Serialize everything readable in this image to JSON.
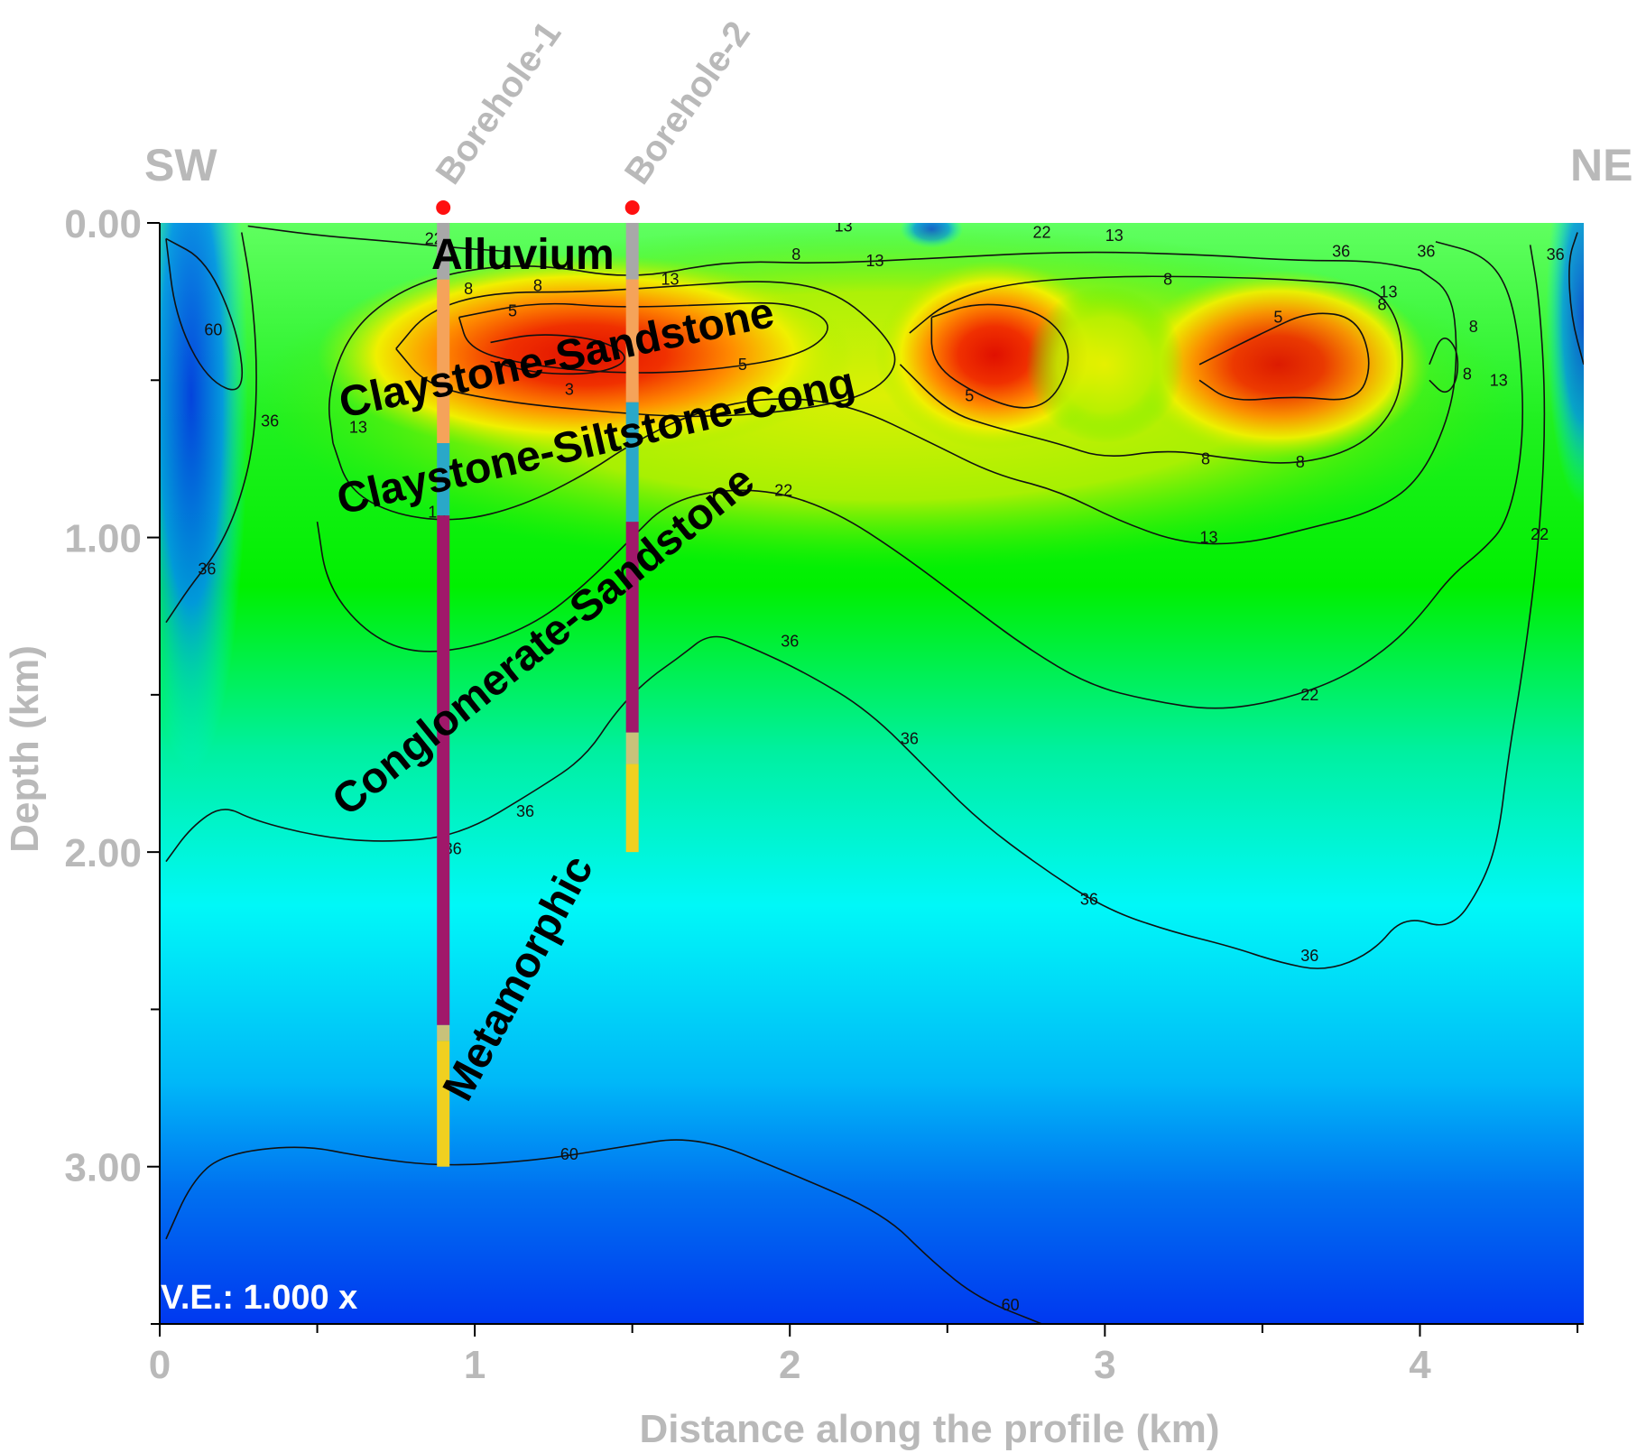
{
  "chart_data": {
    "type": "heatmap",
    "title": "",
    "xlabel": "Distance along the profile (km)",
    "ylabel": "Depth (km)",
    "xlim": [
      0,
      4.52
    ],
    "ylim": [
      0,
      3.5
    ],
    "x_ticks": [
      "0",
      "1",
      "2",
      "3",
      "4"
    ],
    "y_ticks": [
      "0.00",
      "1.00",
      "2.00",
      "3.00"
    ],
    "direction_labels": {
      "left": "SW",
      "right": "NE"
    },
    "vertical_exaggeration": "V.E.: 1.000 x",
    "colorscale": [
      {
        "value": 3,
        "color": "#e81400"
      },
      {
        "value": 8,
        "color": "#ff9a00"
      },
      {
        "value": 13,
        "color": "#e8f000"
      },
      {
        "value": 22,
        "color": "#00f000"
      },
      {
        "value": 36,
        "color": "#00f8f8"
      },
      {
        "value": 60,
        "color": "#0040f0"
      }
    ],
    "contour_levels": [
      3,
      5,
      8,
      13,
      22,
      36,
      60
    ],
    "boreholes": [
      {
        "name": "Borehole-1",
        "x": 0.9,
        "depth": 3.0,
        "intervals": [
          {
            "top": 0.0,
            "bottom": 0.18,
            "color": "#a8a8a8"
          },
          {
            "top": 0.18,
            "bottom": 0.7,
            "color": "#f5a35a"
          },
          {
            "top": 0.7,
            "bottom": 0.93,
            "color": "#2aa8c8"
          },
          {
            "top": 0.93,
            "bottom": 2.55,
            "color": "#a0186a"
          },
          {
            "top": 2.55,
            "bottom": 2.6,
            "color": "#c8c27a"
          },
          {
            "top": 2.6,
            "bottom": 3.0,
            "color": "#f0d020"
          }
        ]
      },
      {
        "name": "Borehole-2",
        "x": 1.5,
        "depth": 2.0,
        "intervals": [
          {
            "top": 0.0,
            "bottom": 0.18,
            "color": "#a8a8a8"
          },
          {
            "top": 0.18,
            "bottom": 0.57,
            "color": "#f5a35a"
          },
          {
            "top": 0.57,
            "bottom": 0.95,
            "color": "#2aa8c8"
          },
          {
            "top": 0.95,
            "bottom": 1.62,
            "color": "#a0186a"
          },
          {
            "top": 1.62,
            "bottom": 1.72,
            "color": "#c8c27a"
          },
          {
            "top": 1.72,
            "bottom": 2.0,
            "color": "#f0d020"
          }
        ]
      }
    ],
    "units": [
      "Alluvium",
      "Claystone-Sandstone",
      "Claystone-Siltstone-Cong",
      "Conglomerate-Sandstone",
      "Metamorphic"
    ],
    "contours": [
      {
        "level": "60",
        "points": [
          [
            0.02,
            3.23
          ],
          [
            0.1,
            3.05
          ],
          [
            0.2,
            2.96
          ],
          [
            0.45,
            2.93
          ],
          [
            0.65,
            2.97
          ],
          [
            0.9,
            3.0
          ],
          [
            1.2,
            2.98
          ],
          [
            1.45,
            2.94
          ],
          [
            1.7,
            2.9
          ],
          [
            2.0,
            3.02
          ],
          [
            2.3,
            3.15
          ],
          [
            2.45,
            3.3
          ],
          [
            2.6,
            3.42
          ],
          [
            2.8,
            3.5
          ]
        ],
        "labels": [
          [
            1.3,
            2.96
          ],
          [
            2.7,
            3.44
          ]
        ]
      },
      {
        "level": "60",
        "points": [
          [
            0.02,
            0.05
          ],
          [
            0.15,
            0.12
          ],
          [
            0.25,
            0.35
          ],
          [
            0.27,
            0.55
          ],
          [
            0.15,
            0.5
          ],
          [
            0.05,
            0.3
          ],
          [
            0.02,
            0.05
          ]
        ],
        "labels": [
          [
            0.17,
            0.34
          ]
        ]
      },
      {
        "level": "36",
        "points": [
          [
            0.02,
            2.03
          ],
          [
            0.1,
            1.92
          ],
          [
            0.2,
            1.85
          ],
          [
            0.3,
            1.9
          ],
          [
            0.5,
            1.95
          ],
          [
            0.7,
            1.97
          ],
          [
            0.95,
            1.95
          ],
          [
            1.2,
            1.8
          ],
          [
            1.35,
            1.7
          ],
          [
            1.45,
            1.55
          ],
          [
            1.55,
            1.45
          ],
          [
            1.65,
            1.38
          ],
          [
            1.75,
            1.3
          ],
          [
            1.88,
            1.35
          ],
          [
            2.05,
            1.43
          ],
          [
            2.25,
            1.55
          ],
          [
            2.45,
            1.75
          ],
          [
            2.6,
            1.9
          ],
          [
            2.8,
            2.05
          ],
          [
            3.0,
            2.18
          ],
          [
            3.2,
            2.25
          ],
          [
            3.4,
            2.3
          ],
          [
            3.55,
            2.35
          ],
          [
            3.7,
            2.38
          ],
          [
            3.85,
            2.32
          ],
          [
            3.95,
            2.2
          ],
          [
            4.1,
            2.25
          ],
          [
            4.2,
            2.1
          ],
          [
            4.25,
            1.95
          ],
          [
            4.28,
            1.7
          ],
          [
            4.33,
            1.4
          ],
          [
            4.38,
            1.0
          ],
          [
            4.4,
            0.6
          ],
          [
            4.38,
            0.25
          ],
          [
            4.35,
            0.07
          ]
        ],
        "labels": [
          [
            1.16,
            1.87
          ],
          [
            0.93,
            1.99
          ],
          [
            2.0,
            1.33
          ],
          [
            2.38,
            1.64
          ],
          [
            2.95,
            2.15
          ],
          [
            3.65,
            2.33
          ]
        ]
      },
      {
        "level": "36",
        "points": [
          [
            0.02,
            1.27
          ],
          [
            0.1,
            1.15
          ],
          [
            0.18,
            1.05
          ],
          [
            0.25,
            0.9
          ],
          [
            0.3,
            0.7
          ],
          [
            0.31,
            0.45
          ],
          [
            0.29,
            0.2
          ],
          [
            0.26,
            0.03
          ]
        ],
        "labels": [
          [
            0.15,
            1.1
          ],
          [
            0.35,
            0.63
          ]
        ]
      },
      {
        "level": "36",
        "points": [
          [
            4.52,
            0.45
          ],
          [
            4.48,
            0.3
          ],
          [
            4.47,
            0.12
          ],
          [
            4.5,
            0.03
          ]
        ],
        "labels": [
          [
            4.43,
            0.1
          ],
          [
            4.02,
            0.09
          ],
          [
            3.75,
            0.09
          ]
        ]
      },
      {
        "level": "22",
        "points": [
          [
            0.5,
            0.95
          ],
          [
            0.53,
            1.15
          ],
          [
            0.65,
            1.3
          ],
          [
            0.8,
            1.37
          ],
          [
            1.0,
            1.35
          ],
          [
            1.2,
            1.27
          ],
          [
            1.35,
            1.15
          ],
          [
            1.5,
            1.0
          ],
          [
            1.6,
            0.9
          ],
          [
            1.75,
            0.85
          ],
          [
            1.95,
            0.85
          ],
          [
            2.15,
            0.92
          ],
          [
            2.35,
            1.05
          ],
          [
            2.55,
            1.2
          ],
          [
            2.75,
            1.35
          ],
          [
            2.95,
            1.47
          ],
          [
            3.15,
            1.52
          ],
          [
            3.35,
            1.55
          ],
          [
            3.55,
            1.52
          ],
          [
            3.75,
            1.45
          ],
          [
            3.9,
            1.35
          ],
          [
            4.0,
            1.25
          ],
          [
            4.1,
            1.12
          ],
          [
            4.2,
            1.04
          ],
          [
            4.28,
            0.95
          ],
          [
            4.33,
            0.7
          ],
          [
            4.32,
            0.4
          ],
          [
            4.28,
            0.2
          ],
          [
            4.2,
            0.1
          ],
          [
            4.05,
            0.06
          ]
        ],
        "labels": [
          [
            1.98,
            0.85
          ],
          [
            3.65,
            1.5
          ],
          [
            4.38,
            0.99
          ]
        ]
      },
      {
        "level": "22",
        "points": [
          [
            0.28,
            0.01
          ],
          [
            0.5,
            0.04
          ],
          [
            0.75,
            0.06
          ],
          [
            0.95,
            0.08
          ],
          [
            1.1,
            0.09
          ]
        ],
        "labels": [
          [
            0.87,
            0.05
          ],
          [
            2.8,
            0.03
          ]
        ]
      },
      {
        "level": "13",
        "points": [
          [
            0.55,
            0.7
          ],
          [
            0.6,
            0.85
          ],
          [
            0.75,
            0.93
          ],
          [
            0.95,
            0.95
          ],
          [
            1.15,
            0.9
          ],
          [
            1.35,
            0.8
          ],
          [
            1.5,
            0.7
          ],
          [
            1.7,
            0.6
          ],
          [
            1.95,
            0.55
          ],
          [
            2.2,
            0.58
          ],
          [
            2.45,
            0.7
          ],
          [
            2.65,
            0.8
          ],
          [
            2.85,
            0.85
          ],
          [
            3.05,
            0.95
          ],
          [
            3.25,
            1.02
          ],
          [
            3.45,
            1.02
          ],
          [
            3.65,
            0.97
          ],
          [
            3.85,
            0.92
          ],
          [
            4.0,
            0.82
          ],
          [
            4.1,
            0.6
          ],
          [
            4.12,
            0.4
          ],
          [
            4.1,
            0.22
          ],
          [
            4.0,
            0.15
          ]
        ],
        "labels": [
          [
            0.88,
            0.92
          ],
          [
            3.33,
            1.0
          ],
          [
            4.25,
            0.5
          ]
        ]
      },
      {
        "level": "13",
        "points": [
          [
            0.55,
            0.7
          ],
          [
            0.53,
            0.55
          ],
          [
            0.6,
            0.35
          ],
          [
            0.75,
            0.22
          ],
          [
            0.95,
            0.15
          ],
          [
            1.2,
            0.13
          ],
          [
            1.5,
            0.18
          ],
          [
            1.8,
            0.12
          ],
          [
            2.1,
            0.13
          ],
          [
            2.5,
            0.11
          ],
          [
            2.9,
            0.09
          ],
          [
            3.3,
            0.1
          ],
          [
            3.6,
            0.12
          ],
          [
            3.85,
            0.12
          ],
          [
            4.0,
            0.15
          ]
        ],
        "labels": [
          [
            0.63,
            0.65
          ],
          [
            1.62,
            0.18
          ],
          [
            2.27,
            0.12
          ],
          [
            3.03,
            0.04
          ],
          [
            3.9,
            0.22
          ],
          [
            2.17,
            0.01
          ]
        ]
      },
      {
        "level": "8",
        "points": [
          [
            0.75,
            0.4
          ],
          [
            0.85,
            0.28
          ],
          [
            1.05,
            0.22
          ],
          [
            1.35,
            0.22
          ],
          [
            1.65,
            0.2
          ],
          [
            1.95,
            0.18
          ],
          [
            2.15,
            0.22
          ],
          [
            2.3,
            0.35
          ],
          [
            2.35,
            0.45
          ],
          [
            2.25,
            0.55
          ],
          [
            2.0,
            0.6
          ],
          [
            1.7,
            0.62
          ],
          [
            1.4,
            0.6
          ],
          [
            1.1,
            0.57
          ],
          [
            0.85,
            0.52
          ],
          [
            0.75,
            0.4
          ]
        ],
        "labels": [
          [
            0.98,
            0.21
          ],
          [
            1.2,
            0.2
          ],
          [
            2.02,
            0.1
          ]
        ]
      },
      {
        "level": "8",
        "points": [
          [
            2.35,
            0.45
          ],
          [
            2.5,
            0.6
          ],
          [
            2.65,
            0.65
          ],
          [
            2.85,
            0.7
          ],
          [
            3.0,
            0.75
          ],
          [
            3.2,
            0.72
          ],
          [
            3.4,
            0.75
          ],
          [
            3.6,
            0.77
          ],
          [
            3.8,
            0.72
          ],
          [
            3.92,
            0.6
          ],
          [
            3.95,
            0.45
          ],
          [
            3.93,
            0.3
          ],
          [
            3.85,
            0.2
          ],
          [
            3.6,
            0.18
          ],
          [
            3.3,
            0.17
          ],
          [
            3.0,
            0.17
          ],
          [
            2.7,
            0.19
          ],
          [
            2.5,
            0.25
          ],
          [
            2.38,
            0.35
          ]
        ],
        "labels": [
          [
            3.2,
            0.18
          ],
          [
            3.32,
            0.75
          ],
          [
            3.62,
            0.76
          ],
          [
            3.88,
            0.26
          ]
        ]
      },
      {
        "level": "8",
        "points": [
          [
            4.03,
            0.45
          ],
          [
            4.07,
            0.35
          ],
          [
            4.12,
            0.4
          ],
          [
            4.12,
            0.5
          ],
          [
            4.08,
            0.55
          ],
          [
            4.03,
            0.5
          ]
        ],
        "labels": [
          [
            4.17,
            0.33
          ],
          [
            4.15,
            0.48
          ]
        ]
      },
      {
        "level": "5",
        "points": [
          [
            0.95,
            0.3
          ],
          [
            1.2,
            0.25
          ],
          [
            1.45,
            0.27
          ],
          [
            1.75,
            0.26
          ],
          [
            2.0,
            0.25
          ],
          [
            2.15,
            0.32
          ],
          [
            2.05,
            0.42
          ],
          [
            1.75,
            0.47
          ],
          [
            1.45,
            0.48
          ],
          [
            1.15,
            0.45
          ],
          [
            0.98,
            0.4
          ],
          [
            0.95,
            0.3
          ]
        ],
        "labels": [
          [
            1.12,
            0.28
          ],
          [
            1.85,
            0.45
          ]
        ]
      },
      {
        "level": "5",
        "points": [
          [
            2.45,
            0.3
          ],
          [
            2.6,
            0.25
          ],
          [
            2.8,
            0.28
          ],
          [
            2.9,
            0.4
          ],
          [
            2.85,
            0.55
          ],
          [
            2.75,
            0.6
          ],
          [
            2.6,
            0.55
          ],
          [
            2.45,
            0.45
          ],
          [
            2.45,
            0.3
          ]
        ],
        "labels": [
          [
            2.57,
            0.55
          ]
        ]
      },
      {
        "level": "5",
        "points": [
          [
            3.3,
            0.45
          ],
          [
            3.5,
            0.35
          ],
          [
            3.65,
            0.28
          ],
          [
            3.8,
            0.3
          ],
          [
            3.85,
            0.45
          ],
          [
            3.8,
            0.57
          ],
          [
            3.6,
            0.55
          ],
          [
            3.4,
            0.57
          ],
          [
            3.3,
            0.5
          ]
        ],
        "labels": [
          [
            3.55,
            0.3
          ]
        ]
      },
      {
        "level": "3",
        "points": [
          [
            1.05,
            0.38
          ],
          [
            1.2,
            0.35
          ],
          [
            1.4,
            0.37
          ],
          [
            1.5,
            0.43
          ],
          [
            1.4,
            0.48
          ],
          [
            1.2,
            0.48
          ],
          [
            1.05,
            0.44
          ]
        ],
        "labels": [
          [
            1.3,
            0.53
          ]
        ]
      }
    ]
  }
}
